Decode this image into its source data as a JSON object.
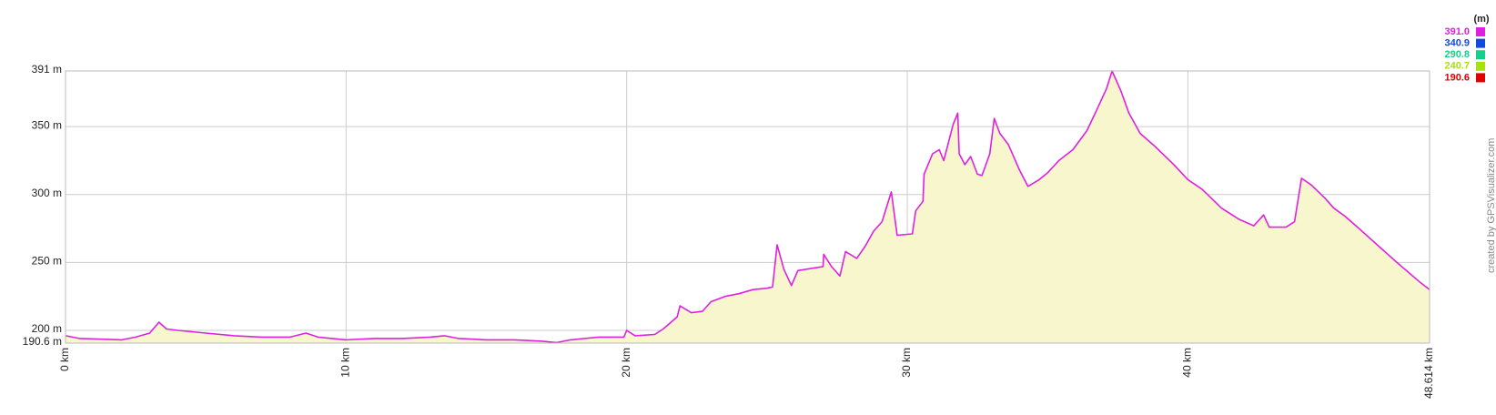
{
  "chart_data": {
    "type": "area",
    "x": [
      0,
      0.5,
      2,
      2.5,
      3,
      3.33,
      3.6,
      4,
      5,
      6,
      7,
      8,
      8.57,
      9,
      10,
      11,
      12,
      13,
      13.5,
      14,
      15,
      16,
      17,
      17.5,
      18,
      19,
      19.9,
      20,
      20.3,
      21,
      21.3,
      21.8,
      21.9,
      22.3,
      22.7,
      23,
      23.5,
      24,
      24.5,
      25,
      25.2,
      25.36,
      25.6,
      25.87,
      26.1,
      27,
      27.02,
      27.3,
      27.6,
      27.8,
      28.2,
      28.5,
      28.8,
      29.1,
      29.43,
      29.64,
      30.18,
      30.3,
      30.56,
      30.6,
      30.9,
      31.14,
      31.3,
      31.64,
      31.8,
      31.85,
      32.05,
      32.26,
      32.5,
      32.66,
      32.94,
      33.1,
      33.3,
      33.6,
      34.0,
      34.3,
      34.7,
      35.0,
      35.4,
      35.9,
      36.4,
      36.7,
      37.1,
      37.3,
      37.6,
      37.9,
      38.3,
      38.8,
      39.5,
      40.0,
      40.5,
      41.2,
      41.8,
      42.35,
      42.7,
      42.9,
      43.5,
      43.8,
      44.05,
      44.4,
      44.9,
      45.2,
      45.6,
      46.1,
      46.8,
      47.45,
      48.3,
      48.614
    ],
    "values": [
      196,
      194,
      193,
      195,
      198,
      206,
      201,
      200,
      198,
      196,
      195,
      195,
      198,
      195,
      193,
      194,
      194,
      195,
      196,
      194,
      193,
      193,
      192,
      191,
      193,
      195,
      195,
      200,
      196,
      197,
      201,
      210,
      218,
      213,
      214,
      221,
      225,
      227,
      230,
      231,
      232,
      263,
      245,
      233,
      244,
      247,
      256,
      247,
      240,
      258,
      253,
      262,
      273,
      280,
      302,
      270,
      271,
      288,
      295,
      315,
      330,
      333,
      325,
      352,
      360,
      330,
      322,
      328,
      315,
      314,
      330,
      356,
      345,
      337,
      318,
      306,
      311,
      316,
      325,
      333,
      347,
      360,
      378,
      391,
      377,
      360,
      345,
      336,
      322,
      311,
      304,
      290,
      282,
      277,
      285,
      276,
      276,
      280,
      312,
      307,
      297,
      290,
      284,
      275,
      262,
      250,
      235,
      230
    ],
    "xlim": [
      0,
      48.614
    ],
    "ylim": [
      190.6,
      391
    ],
    "xticks": [
      {
        "value": 0,
        "label": "0 km"
      },
      {
        "value": 10,
        "label": "10 km"
      },
      {
        "value": 20,
        "label": "20 km"
      },
      {
        "value": 30,
        "label": "30 km"
      },
      {
        "value": 40,
        "label": "40 km"
      },
      {
        "value": 48.614,
        "label": "48.614 km"
      }
    ],
    "yticks": [
      {
        "value": 190.6,
        "label": "190.6 m"
      },
      {
        "value": 200,
        "label": "200 m"
      },
      {
        "value": 250,
        "label": "250 m"
      },
      {
        "value": 300,
        "label": "300 m"
      },
      {
        "value": 350,
        "label": "350 m"
      },
      {
        "value": 391,
        "label": "391 m"
      }
    ],
    "grid": true,
    "area_color": "#f8f6cc",
    "legend": {
      "title": "(m)",
      "items": [
        {
          "value": 391,
          "label": "391.0",
          "color": "#e020e0"
        },
        {
          "value": 340.9,
          "label": "340.9",
          "color": "#1448e0"
        },
        {
          "value": 290.8,
          "label": "290.8",
          "color": "#14d08c"
        },
        {
          "value": 240.7,
          "label": "240.7",
          "color": "#a8e010"
        },
        {
          "value": 190.6,
          "label": "190.6",
          "color": "#e00000"
        }
      ]
    },
    "credit": "created by GPSVisualizer.com"
  }
}
